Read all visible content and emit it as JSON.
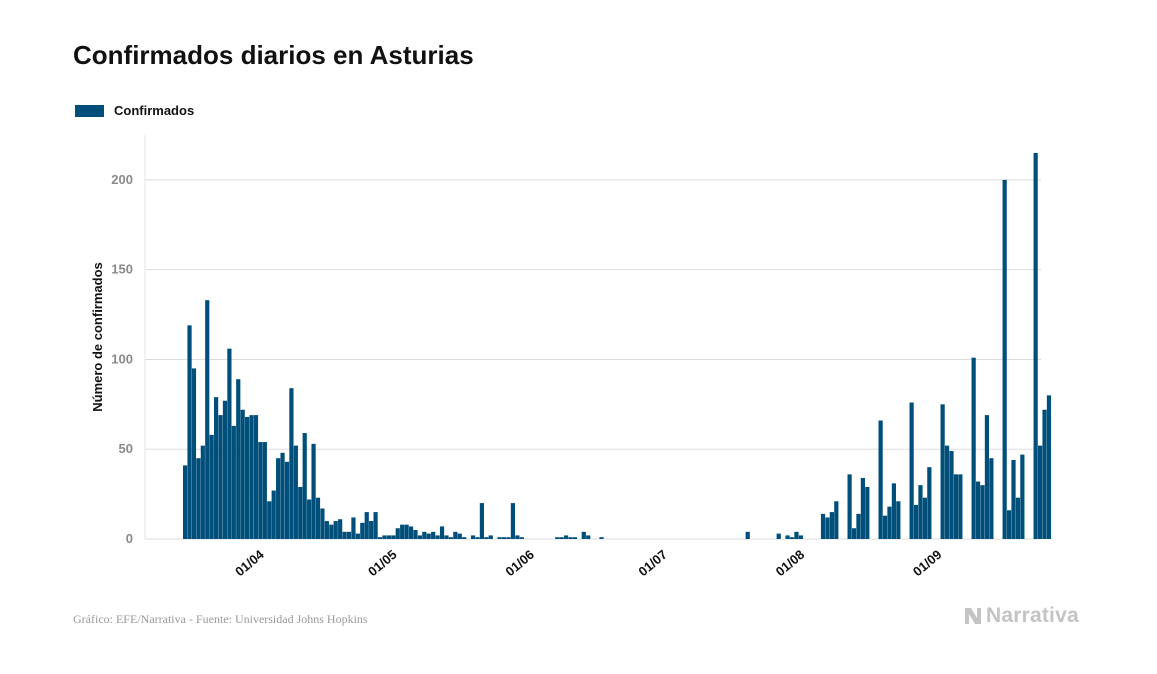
{
  "title": "Confirmados diarios en Asturias",
  "source": "Gráfico: EFE/Narrativa - Fuente: Universidad Johns Hopkins",
  "brand": {
    "name": "Narrativa",
    "icon": "narrativa-logo-icon"
  },
  "colors": {
    "bar": "#004f7a",
    "grid": "#dddddd",
    "tick_text": "#8a8a8a",
    "axis_title": "#111111",
    "brand": "#c4c4c4"
  },
  "chart_data": {
    "type": "bar",
    "title": "Confirmados diarios en Asturias",
    "ylabel": "Número de confirmados",
    "xlabel": "",
    "ylim": [
      0,
      225
    ],
    "yticks": [
      0,
      50,
      100,
      150,
      200
    ],
    "xticks": [
      {
        "label": "01/04",
        "date": "2020-04-01"
      },
      {
        "label": "01/05",
        "date": "2020-05-01"
      },
      {
        "label": "01/06",
        "date": "2020-06-01"
      },
      {
        "label": "01/07",
        "date": "2020-07-01"
      },
      {
        "label": "01/08",
        "date": "2020-08-01"
      },
      {
        "label": "01/09",
        "date": "2020-09-01"
      }
    ],
    "grid": true,
    "legend": "top-left",
    "start_date": "2020-03-14",
    "series": [
      {
        "name": "Confirmados",
        "color": "#004f7a",
        "values": [
          41,
          119,
          95,
          45,
          52,
          133,
          58,
          79,
          69,
          77,
          106,
          63,
          89,
          72,
          68,
          69,
          69,
          54,
          54,
          21,
          27,
          45,
          48,
          43,
          84,
          52,
          29,
          59,
          22,
          53,
          23,
          17,
          10,
          8,
          10,
          11,
          4,
          4,
          12,
          3,
          9,
          15,
          10,
          15,
          1,
          2,
          2,
          2,
          6,
          8,
          8,
          7,
          5,
          2,
          4,
          3,
          4,
          2,
          7,
          2,
          1,
          4,
          3,
          1,
          0,
          2,
          1,
          20,
          1,
          2,
          0,
          1,
          1,
          1,
          20,
          2,
          1,
          0,
          0,
          0,
          0,
          0,
          0,
          0,
          1,
          1,
          2,
          1,
          1,
          0,
          4,
          2,
          0,
          0,
          1,
          0,
          0,
          0,
          0,
          0,
          0,
          0,
          0,
          0,
          0,
          0,
          0,
          0,
          0,
          0,
          0,
          0,
          0,
          0,
          0,
          0,
          0,
          0,
          0,
          0,
          0,
          0,
          0,
          0,
          0,
          0,
          0,
          4,
          0,
          0,
          0,
          0,
          0,
          0,
          3,
          0,
          2,
          1,
          4,
          2,
          0,
          0,
          0,
          0,
          14,
          12,
          15,
          21,
          0,
          0,
          36,
          6,
          14,
          34,
          29,
          0,
          0,
          66,
          13,
          18,
          31,
          21,
          0,
          0,
          76,
          19,
          30,
          23,
          40,
          0,
          0,
          75,
          52,
          49,
          36,
          36,
          0,
          0,
          101,
          32,
          30,
          69,
          45,
          0,
          0,
          200,
          16,
          44,
          23,
          47,
          0,
          0,
          215,
          52,
          72,
          80
        ]
      }
    ]
  }
}
